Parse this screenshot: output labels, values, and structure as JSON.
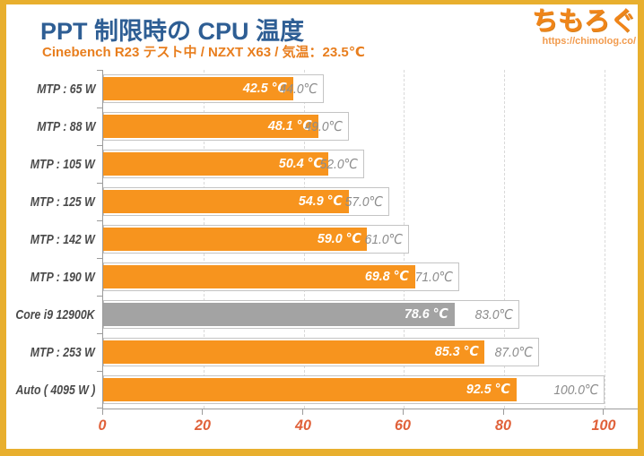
{
  "header": {
    "title": "PPT 制限時の CPU 温度",
    "subtitle": "Cinebench R23 テスト中 / NZXT X63 / 気温：23.5℃"
  },
  "logo": {
    "text": "ちもろぐ",
    "url": "https://chimolog.co/"
  },
  "chart_data": {
    "type": "bar",
    "orientation": "horizontal",
    "title": "PPT 制限時の CPU 温度",
    "subtitle": "Cinebench R23 テスト中 / NZXT X63 / 気温：23.5℃",
    "unit": "℃",
    "categories": [
      "MTP : 65 W",
      "MTP : 88 W",
      "MTP : 105 W",
      "MTP : 125 W",
      "MTP : 142 W",
      "MTP : 190 W",
      "Core i9 12900K",
      "MTP : 253 W",
      "Auto ( 4095 W )"
    ],
    "series": [
      {
        "name": "bar_temperature",
        "values": [
          42.5,
          48.1,
          50.4,
          54.9,
          59.0,
          69.8,
          78.6,
          85.3,
          92.5
        ],
        "labels": [
          "42.5 ℃",
          "48.1 ℃",
          "50.4 ℃",
          "54.9 ℃",
          "59.0 ℃",
          "69.8 ℃",
          "78.6 ℃",
          "85.3 ℃",
          "92.5 ℃"
        ]
      },
      {
        "name": "box_temperature",
        "values": [
          44.0,
          49.0,
          52.0,
          57.0,
          61.0,
          71.0,
          83.0,
          87.0,
          100.0
        ],
        "labels": [
          "44.0℃",
          "49.0℃",
          "52.0℃",
          "57.0℃",
          "61.0℃",
          "71.0℃",
          "83.0℃",
          "87.0℃",
          "100.0℃"
        ]
      }
    ],
    "highlight_index": 6,
    "x_ticks": [
      0,
      20,
      40,
      60,
      80,
      100
    ],
    "x_tick_labels": [
      "0",
      "20",
      "40",
      "60",
      "80",
      "100"
    ],
    "xlim": [
      0,
      107
    ],
    "bar_scale_max": 120,
    "grid": "vertical dashed at ticks",
    "legend": "none",
    "colors": {
      "bar": "#F7941E",
      "highlight_bar": "#A3A3A3",
      "box_fill": "#FFFFFF",
      "box_border": "#C4C4C4",
      "bar_label": "#FFFFFF",
      "box_label": "#8C8C8C",
      "axis_label": "#E0613A",
      "category_label": "#4A4A4A",
      "grid_color": "#D9D9D9",
      "frame": "#E8AF2E",
      "title": "#2E5E94",
      "subtitle": "#E87E1E"
    }
  }
}
